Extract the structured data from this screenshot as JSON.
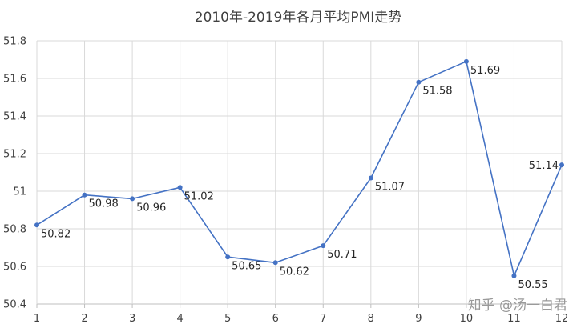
{
  "chart_data": {
    "type": "line",
    "title": "2010年-2019年各月平均PMI走势",
    "xlabel": "",
    "ylabel": "",
    "categories": [
      "1",
      "2",
      "3",
      "4",
      "5",
      "6",
      "7",
      "8",
      "9",
      "10",
      "11",
      "12"
    ],
    "series": [
      {
        "values": [
          50.82,
          50.98,
          50.96,
          51.02,
          50.65,
          50.62,
          50.71,
          51.07,
          51.58,
          51.69,
          50.55,
          51.14
        ]
      }
    ],
    "data_labels": [
      "50.82",
      "50.98",
      "50.96",
      "51.02",
      "50.65",
      "50.62",
      "50.71",
      "51.07",
      "51.58",
      "51.69",
      "50.55",
      "51.14"
    ],
    "ylim": [
      50.4,
      51.8
    ],
    "y_ticks": [
      "50.4",
      "50.6",
      "50.8",
      "51",
      "51.2",
      "51.4",
      "51.6",
      "51.8"
    ],
    "grid": true,
    "line_color": "#4472c4",
    "watermark": "知乎 @汤一白君"
  }
}
